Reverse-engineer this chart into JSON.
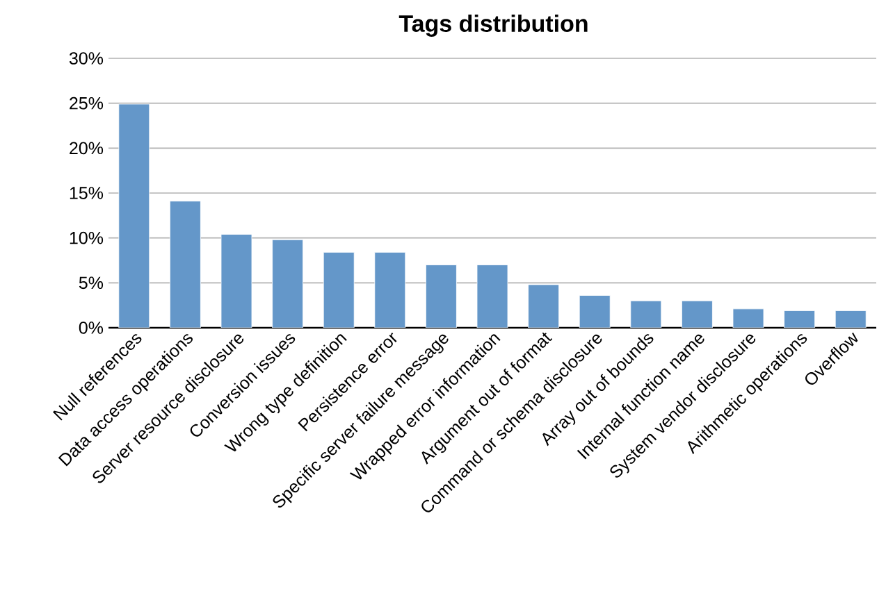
{
  "chart_data": {
    "type": "bar",
    "title": "Tags distribution",
    "categories": [
      "Null references",
      "Data access operations",
      "Server resource disclosure",
      "Conversion issues",
      "Wrong type definition",
      "Persistence error",
      "Specific server failure message",
      "Wrapped error information",
      "Argument out of format",
      "Command or schema disclosure",
      "Array out of bounds",
      "Internal function name",
      "System vendor disclosure",
      "Arithmetic operations",
      "Overflow"
    ],
    "values": [
      24.9,
      14.1,
      10.4,
      9.8,
      8.4,
      8.4,
      7.0,
      7.0,
      4.8,
      3.6,
      3.0,
      3.0,
      2.1,
      1.9,
      1.9
    ],
    "color": "#6497c9",
    "ylim": [
      0,
      30
    ],
    "yticks": [
      {
        "value": 0,
        "label": "0%"
      },
      {
        "value": 5,
        "label": "5%"
      },
      {
        "value": 10,
        "label": "10%"
      },
      {
        "value": 15,
        "label": "15%"
      },
      {
        "value": 20,
        "label": "20%"
      },
      {
        "value": 25,
        "label": "25%"
      },
      {
        "value": 30,
        "label": "30%"
      }
    ],
    "grid": "y"
  }
}
